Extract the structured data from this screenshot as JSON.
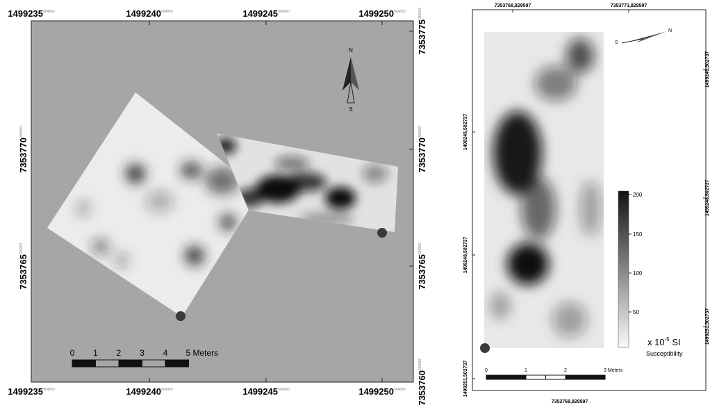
{
  "left_map": {
    "x_labels_top": [
      {
        "main": "1499235",
        "sup": "864880"
      },
      {
        "main": "1499240",
        "sup": "864880"
      },
      {
        "main": "1499245",
        "sup": "864880"
      },
      {
        "main": "1499250",
        "sup": "864880"
      }
    ],
    "x_labels_bottom": [
      {
        "main": "1499235",
        "sup": "864880"
      },
      {
        "main": "1499240",
        "sup": "864880"
      },
      {
        "main": "1499245",
        "sup": "864880"
      },
      {
        "main": "1499250",
        "sup": "864880"
      }
    ],
    "y_labels_left": [
      {
        "main": "7353770",
        "sup": "396883"
      },
      {
        "main": "7353765",
        "sup": "396883"
      }
    ],
    "y_labels_right": [
      {
        "main": "7353775",
        "sup": "396883"
      },
      {
        "main": "7353770",
        "sup": "396883"
      },
      {
        "main": "7353765",
        "sup": "396883"
      },
      {
        "main": "7353760",
        "sup": "396883"
      }
    ],
    "north": {
      "n": "N",
      "s": "S"
    },
    "scale_labels": [
      "0",
      "1",
      "2",
      "3",
      "4",
      "5 Meters"
    ]
  },
  "right_map": {
    "x_labels_top": [
      "7353768,829597",
      "7353771,829597"
    ],
    "x_labels_bottom": [
      "7353768,829597"
    ],
    "y_labels_left": [
      "1499245,502737",
      "1499248,502737",
      "1499251,502737"
    ],
    "y_labels_right": [
      "1499245,502737",
      "1499248,502737",
      "1499251,502737"
    ],
    "north": {
      "s": "S",
      "n": "N"
    },
    "colorbar_labels": [
      "200",
      "150",
      "100",
      "50"
    ],
    "unit": {
      "base": "x 10",
      "exp": "-5",
      "tail": " SI"
    },
    "quantity": "Susceptibility",
    "scale_labels": [
      "0",
      "1",
      "2",
      "3 Meters"
    ]
  }
}
